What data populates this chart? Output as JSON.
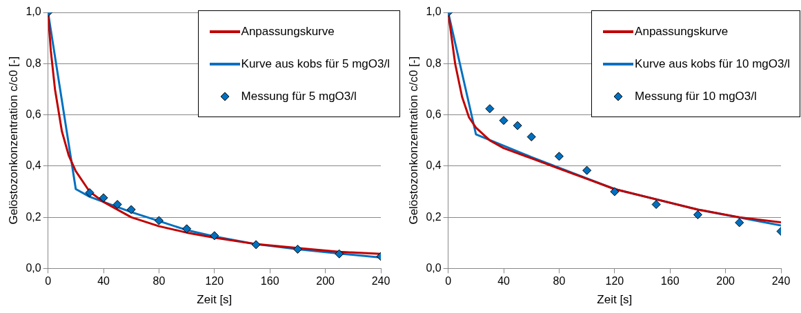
{
  "chart_data": [
    {
      "type": "line",
      "xlabel": "Zeit [s]",
      "ylabel": "Gelöstozonkonzentration c/c0 [-]",
      "xlim": [
        0,
        240
      ],
      "xticks": [
        0,
        40,
        80,
        120,
        160,
        200,
        240
      ],
      "ylim": [
        0,
        1
      ],
      "yticks": [
        {
          "value": 0,
          "label": "0,0"
        },
        {
          "value": 0.2,
          "label": "0,2"
        },
        {
          "value": 0.4,
          "label": "0,4"
        },
        {
          "value": 0.6,
          "label": "0,6"
        },
        {
          "value": 0.8,
          "label": "0,8"
        },
        {
          "value": 1,
          "label": "1,0"
        }
      ],
      "grid": "y",
      "legend": "top right",
      "series": [
        {
          "name": "Anpassungskurve",
          "color": "#c00000",
          "x": [
            0,
            2,
            5,
            10,
            15,
            20,
            30,
            40,
            60,
            80,
            100,
            120,
            150,
            180,
            210,
            240
          ],
          "values": [
            1,
            0.85,
            0.7,
            0.535,
            0.44,
            0.38,
            0.3,
            0.26,
            0.2,
            0.165,
            0.14,
            0.12,
            0.095,
            0.08,
            0.065,
            0.057
          ]
        },
        {
          "name": "Kurve aus kobs für 5 mgO3/l",
          "type": "line",
          "color": "#0070c0",
          "x": [
            0,
            20,
            30,
            40,
            60,
            80,
            100,
            120,
            150,
            180,
            210,
            240
          ],
          "values": [
            1,
            0.31,
            0.28,
            0.26,
            0.22,
            0.185,
            0.15,
            0.125,
            0.095,
            0.075,
            0.058,
            0.043
          ]
        },
        {
          "name": "Messung für 5 mgO3/l",
          "type": "scatter",
          "marker": "diamond",
          "color": "#0070c0",
          "x": [
            0,
            30,
            40,
            50,
            60,
            80,
            100,
            120,
            150,
            180,
            210,
            240
          ],
          "values": [
            1,
            0.296,
            0.276,
            0.25,
            0.23,
            0.187,
            0.155,
            0.128,
            0.093,
            0.075,
            0.057,
            0.047
          ]
        }
      ]
    },
    {
      "type": "line",
      "xlabel": "Zeit [s]",
      "ylabel": "Gelöstozonkonzentration c/c0 [-]",
      "xlim": [
        0,
        240
      ],
      "xticks": [
        0,
        40,
        80,
        120,
        160,
        200,
        240
      ],
      "ylim": [
        0,
        1
      ],
      "yticks": [
        {
          "value": 0,
          "label": "0,0"
        },
        {
          "value": 0.2,
          "label": "0,2"
        },
        {
          "value": 0.4,
          "label": "0,4"
        },
        {
          "value": 0.6,
          "label": "0,6"
        },
        {
          "value": 0.8,
          "label": "0,8"
        },
        {
          "value": 1,
          "label": "1,0"
        }
      ],
      "grid": "y",
      "legend": "top right",
      "series": [
        {
          "name": "Anpassungskurve",
          "color": "#c00000",
          "x": [
            0,
            5,
            10,
            15,
            20,
            30,
            40,
            60,
            80,
            100,
            120,
            150,
            180,
            210,
            240
          ],
          "values": [
            1,
            0.8,
            0.67,
            0.59,
            0.55,
            0.5,
            0.47,
            0.43,
            0.39,
            0.35,
            0.31,
            0.27,
            0.23,
            0.2,
            0.18
          ]
        },
        {
          "name": "Kurve aus kobs für 10 mgO3/l",
          "type": "line",
          "color": "#0070c0",
          "x": [
            0,
            20,
            60,
            120,
            180,
            240
          ],
          "values": [
            1,
            0.524,
            0.435,
            0.31,
            0.23,
            0.168
          ]
        },
        {
          "name": "Messung für 10 mgO3/l",
          "type": "scatter",
          "marker": "diamond",
          "color": "#0070c0",
          "x": [
            0,
            30,
            40,
            50,
            60,
            80,
            100,
            120,
            150,
            180,
            210,
            240
          ],
          "values": [
            1,
            0.624,
            0.578,
            0.558,
            0.514,
            0.438,
            0.383,
            0.3,
            0.25,
            0.21,
            0.179,
            0.145
          ]
        }
      ]
    }
  ]
}
